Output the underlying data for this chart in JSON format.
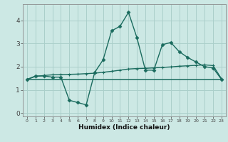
{
  "xlabel": "Humidex (Indice chaleur)",
  "background_color": "#cce8e4",
  "grid_color": "#aacfca",
  "line_color": "#1a6b5e",
  "xlim": [
    -0.5,
    23.5
  ],
  "ylim": [
    -0.15,
    4.7
  ],
  "xticks": [
    0,
    1,
    2,
    3,
    4,
    5,
    6,
    7,
    8,
    9,
    10,
    11,
    12,
    13,
    14,
    15,
    16,
    17,
    18,
    19,
    20,
    21,
    22,
    23
  ],
  "yticks": [
    0,
    1,
    2,
    3,
    4
  ],
  "line1_x": [
    0,
    1,
    2,
    3,
    4,
    5,
    6,
    7,
    8,
    9,
    10,
    11,
    12,
    13,
    14,
    15,
    16,
    17,
    18,
    19,
    20,
    21,
    22,
    23
  ],
  "line1_y": [
    1.45,
    1.6,
    1.6,
    1.55,
    1.55,
    0.55,
    0.45,
    0.35,
    1.75,
    2.3,
    3.55,
    3.75,
    4.35,
    3.25,
    1.85,
    1.85,
    2.95,
    3.05,
    2.65,
    2.4,
    2.2,
    2.0,
    1.95,
    1.45
  ],
  "line2_x": [
    0,
    1,
    2,
    3,
    4,
    5,
    6,
    7,
    8,
    9,
    10,
    11,
    12,
    13,
    14,
    15,
    16,
    17,
    18,
    19,
    20,
    21,
    22,
    23
  ],
  "line2_y": [
    1.45,
    1.58,
    1.62,
    1.65,
    1.66,
    1.67,
    1.68,
    1.7,
    1.72,
    1.76,
    1.8,
    1.85,
    1.9,
    1.92,
    1.93,
    1.95,
    1.97,
    1.99,
    2.02,
    2.04,
    2.06,
    2.08,
    2.05,
    1.48
  ],
  "line3_x": [
    0,
    1,
    2,
    3,
    4,
    5,
    6,
    7,
    8,
    9,
    10,
    11,
    12,
    13,
    14,
    15,
    16,
    17,
    18,
    19,
    20,
    21,
    22,
    23
  ],
  "line3_y": [
    1.45,
    1.45,
    1.45,
    1.45,
    1.45,
    1.45,
    1.45,
    1.45,
    1.45,
    1.45,
    1.45,
    1.45,
    1.45,
    1.45,
    1.45,
    1.45,
    1.45,
    1.45,
    1.45,
    1.45,
    1.45,
    1.45,
    1.45,
    1.45
  ]
}
